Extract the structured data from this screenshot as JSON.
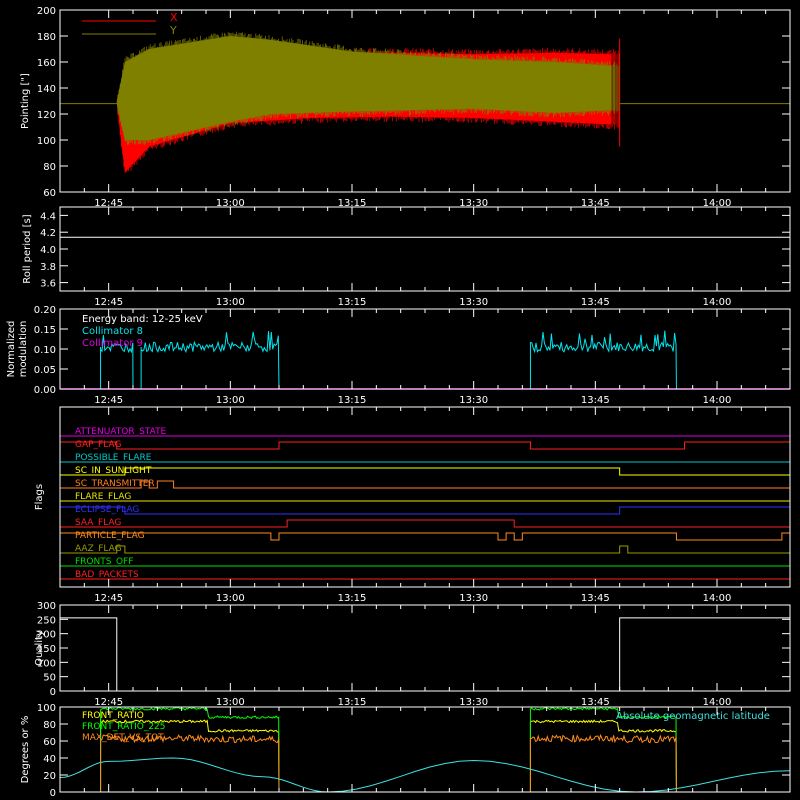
{
  "time_ticks": [
    "12:45",
    "13:00",
    "13:15",
    "13:30",
    "13:45",
    "14:00"
  ],
  "colors": {
    "background": "#000000",
    "axes": "#ffffff",
    "x_series": "#ff0000",
    "y_series": "#808000",
    "collimator8": "#00e5ee",
    "collimator9": "#e000e0",
    "front_ratio": "#ffff00",
    "front_ratio_225": "#00ff00",
    "max_det": "#ff8c1a",
    "geomag": "#40e0e0"
  },
  "chart_data": [
    {
      "id": "pointing",
      "type": "area",
      "ylabel": "Pointing [\"]",
      "ylim": [
        60,
        200
      ],
      "yticks": [
        "60",
        "80",
        "100",
        "120",
        "140",
        "160",
        "180",
        "200"
      ],
      "legend": [
        "X",
        "Y"
      ],
      "baseline": 128,
      "active_range": [
        "12:46",
        "13:48"
      ],
      "series": [
        {
          "name": "X",
          "x": [
            "12:46",
            "12:47",
            "12:50",
            "13:00",
            "13:10",
            "13:20",
            "13:30",
            "13:40",
            "13:47"
          ],
          "upper": [
            130,
            152,
            158,
            165,
            166,
            167,
            166,
            167,
            166
          ],
          "lower": [
            128,
            75,
            95,
            113,
            117,
            118,
            117,
            114,
            112
          ]
        },
        {
          "name": "Y",
          "x": [
            "12:46",
            "12:47",
            "12:50",
            "13:00",
            "13:05",
            "13:15",
            "13:30",
            "13:40",
            "13:47"
          ],
          "upper": [
            130,
            160,
            170,
            180,
            177,
            168,
            162,
            160,
            157
          ],
          "lower": [
            128,
            100,
            100,
            114,
            120,
            122,
            124,
            121,
            123
          ]
        }
      ]
    },
    {
      "id": "roll",
      "type": "line",
      "ylabel": "Roll period [s]",
      "ylim": [
        3.5,
        4.5
      ],
      "yticks": [
        "3.6",
        "3.8",
        "4.0",
        "4.2",
        "4.4"
      ],
      "series": [
        {
          "name": "",
          "x": [
            "12:39",
            "14:09"
          ],
          "values": [
            4.14,
            4.14
          ]
        }
      ]
    },
    {
      "id": "modulation",
      "type": "line",
      "ylabel": "Normalized modulation",
      "ylim": [
        0,
        0.2
      ],
      "yticks": [
        "0.00",
        "0.05",
        "0.10",
        "0.15",
        "0.20"
      ],
      "annotation": "Energy band: 12-25 keV",
      "legend": [
        "Collimator 8",
        "Collimator 9"
      ],
      "segments": [
        [
          "12:44",
          "12:48"
        ],
        [
          "12:49",
          "13:06"
        ],
        [
          "13:37",
          "13:55"
        ]
      ],
      "series": [
        {
          "name": "Collimator 8",
          "level": 0.105,
          "noise": 0.012
        },
        {
          "name": "Collimator 9",
          "level": 0.0,
          "noise": 0
        }
      ]
    },
    {
      "id": "flags",
      "type": "line",
      "ylabel": "Flags",
      "series": [
        {
          "name": "ATTENUATOR_STATE",
          "color": "#e000e0",
          "steps": [
            [
              "12:39",
              0
            ]
          ]
        },
        {
          "name": "GAP_FLAG",
          "color": "#ff2020",
          "steps": [
            [
              "12:39",
              1
            ],
            [
              "12:46",
              0
            ],
            [
              "13:06",
              1
            ],
            [
              "13:37",
              0
            ],
            [
              "13:56",
              1
            ]
          ]
        },
        {
          "name": "POSSIBLE_FLARE",
          "color": "#00c8c8",
          "steps": [
            [
              "12:39",
              0
            ]
          ]
        },
        {
          "name": "SC_IN_SUNLIGHT",
          "color": "#ffff00",
          "steps": [
            [
              "12:39",
              0
            ],
            [
              "12:47",
              1
            ],
            [
              "13:48",
              0
            ]
          ]
        },
        {
          "name": "SC_TRANSMITTER",
          "color": "#ff7f24",
          "steps": [
            [
              "12:39",
              0
            ],
            [
              "12:49",
              1
            ],
            [
              "12:50",
              0
            ],
            [
              "12:51",
              1
            ],
            [
              "12:53",
              0
            ]
          ]
        },
        {
          "name": "FLARE_FLAG",
          "color": "#e6e600",
          "steps": [
            [
              "12:39",
              0
            ]
          ]
        },
        {
          "name": "ECLIPSE_FLAG",
          "color": "#3030ff",
          "steps": [
            [
              "12:39",
              1
            ],
            [
              "12:47",
              0
            ],
            [
              "13:48",
              1
            ]
          ]
        },
        {
          "name": "SAA_FLAG",
          "color": "#ff2020",
          "steps": [
            [
              "12:39",
              0
            ],
            [
              "13:07",
              1
            ],
            [
              "13:35",
              0
            ]
          ]
        },
        {
          "name": "PARTICLE_FLAG",
          "color": "#ff8c1a",
          "steps": [
            [
              "12:39",
              1
            ],
            [
              "13:05",
              0
            ],
            [
              "13:06",
              1
            ],
            [
              "13:33",
              0
            ],
            [
              "13:34",
              1
            ],
            [
              "13:35",
              0
            ],
            [
              "13:36",
              1
            ],
            [
              "13:55",
              0
            ],
            [
              "14:08",
              1
            ]
          ]
        },
        {
          "name": "AAZ_FLAG",
          "color": "#9a9a00",
          "steps": [
            [
              "12:39",
              0
            ],
            [
              "12:46",
              1
            ],
            [
              "12:47",
              0
            ],
            [
              "13:48",
              1
            ],
            [
              "13:49",
              0
            ]
          ]
        },
        {
          "name": "FRONTS_OFF",
          "color": "#00e000",
          "steps": [
            [
              "12:39",
              0
            ]
          ]
        },
        {
          "name": "BAD_PACKETS",
          "color": "#ff2020",
          "steps": [
            [
              "12:39",
              0
            ]
          ]
        }
      ]
    },
    {
      "id": "quality",
      "type": "line",
      "ylabel": "Quality",
      "ylim": [
        0,
        300
      ],
      "yticks": [
        "0",
        "50",
        "100",
        "150",
        "200",
        "250",
        "300"
      ],
      "series": [
        {
          "name": "",
          "x": [
            "12:39",
            "12:46",
            "12:46",
            "13:48",
            "13:48",
            "13:48",
            "14:09"
          ],
          "values": [
            255,
            255,
            0,
            0,
            120,
            255,
            255
          ]
        }
      ]
    },
    {
      "id": "ratios",
      "type": "line",
      "ylabel": "Degrees or %",
      "ylim": [
        0,
        100
      ],
      "yticks": [
        "0",
        "20",
        "40",
        "60",
        "80",
        "100"
      ],
      "legend": [
        "FRONT_RATIO",
        "FRONT_RATIO_225",
        "MAX_DET_VS_TOT",
        "Absolute geomagnetic latitude"
      ],
      "segments": [
        [
          "12:44",
          "13:06"
        ],
        [
          "13:37",
          "13:55"
        ]
      ],
      "series": [
        {
          "name": "FRONT_RATIO",
          "levels": [
            [
              0,
              83
            ],
            [
              0.6,
              72
            ],
            [
              1,
              70
            ]
          ]
        },
        {
          "name": "FRONT_RATIO_225",
          "levels": [
            [
              0,
              98
            ],
            [
              0.6,
              88
            ],
            [
              1,
              86
            ]
          ]
        },
        {
          "name": "MAX_DET_VS_TOT",
          "levels": [
            [
              0,
              63
            ],
            [
              0.6,
              62
            ],
            [
              1,
              60
            ]
          ]
        },
        {
          "name": "Absolute geomagnetic latitude",
          "x": [
            "12:39",
            "12:45",
            "12:53",
            "13:04",
            "13:12",
            "13:30",
            "13:50",
            "14:09"
          ],
          "values": [
            17,
            36,
            40,
            18,
            0,
            37,
            0,
            25
          ]
        }
      ]
    }
  ]
}
